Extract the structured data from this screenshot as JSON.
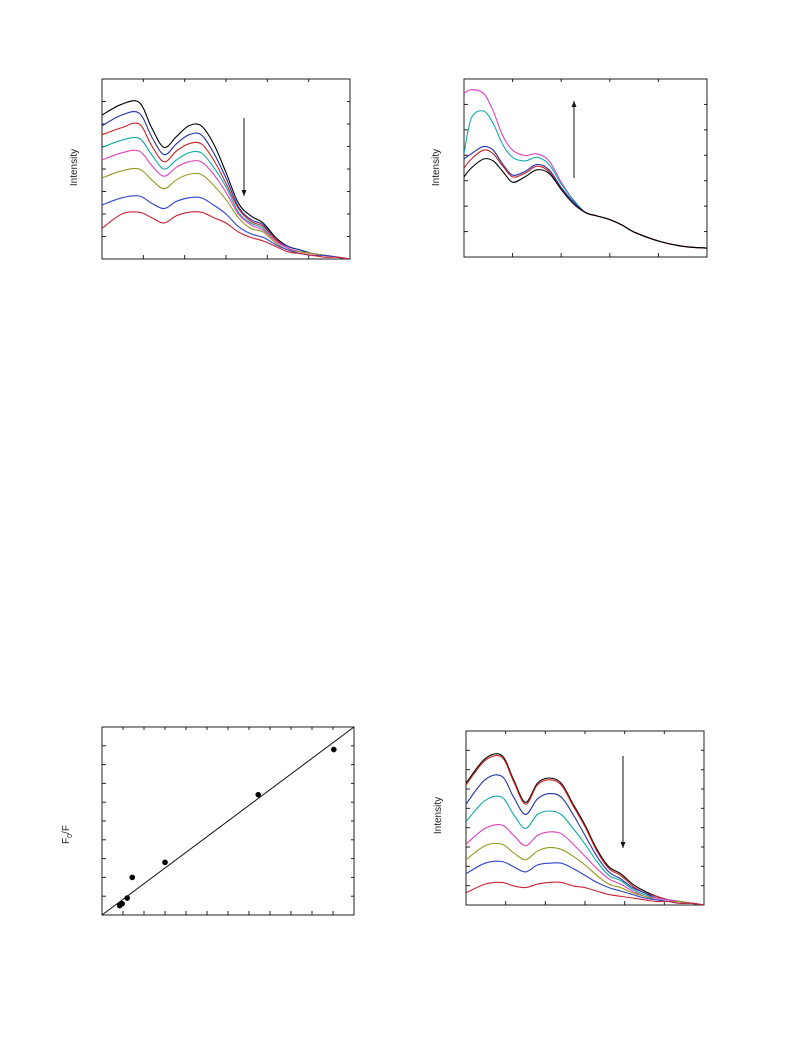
{
  "chart_data": [
    {
      "type": "line",
      "ylabel": "Intensity",
      "xlabel": "",
      "title": "",
      "xlim": [
        0,
        100
      ],
      "ylim": [
        0,
        100
      ],
      "annotation": "arrow-down",
      "series": [
        {
          "color": "#000000",
          "x": [
            0,
            8,
            15,
            20,
            25,
            30,
            35,
            40,
            45,
            50,
            55,
            60,
            65,
            70,
            75,
            80,
            85,
            90,
            95,
            100
          ],
          "values": [
            80,
            86,
            87,
            73,
            62,
            68,
            74,
            74,
            64,
            48,
            31,
            24,
            20,
            12,
            7,
            5,
            3,
            2,
            1,
            0
          ]
        },
        {
          "color": "#2233aa",
          "x": [
            0,
            8,
            15,
            20,
            25,
            30,
            35,
            40,
            45,
            50,
            55,
            60,
            65,
            70,
            75,
            80,
            85,
            90,
            95,
            100
          ],
          "values": [
            74,
            80,
            81,
            68,
            58,
            64,
            69,
            69,
            59,
            45,
            29,
            22,
            19,
            11,
            7,
            5,
            3,
            2,
            1,
            0
          ]
        },
        {
          "color": "#cc2222",
          "x": [
            0,
            8,
            15,
            20,
            25,
            30,
            35,
            40,
            45,
            50,
            55,
            60,
            65,
            70,
            75,
            80,
            85,
            90,
            95,
            100
          ],
          "values": [
            69,
            73,
            75,
            63,
            54,
            60,
            64,
            64,
            55,
            42,
            28,
            21,
            18,
            11,
            6,
            4,
            3,
            2,
            1,
            0
          ]
        },
        {
          "color": "#11aaaa",
          "x": [
            0,
            8,
            15,
            20,
            25,
            30,
            35,
            40,
            45,
            50,
            55,
            60,
            65,
            70,
            75,
            80,
            85,
            90,
            95,
            100
          ],
          "values": [
            62,
            66,
            67,
            58,
            50,
            55,
            59,
            59,
            51,
            40,
            26,
            20,
            17,
            10,
            6,
            4,
            3,
            2,
            1,
            0
          ]
        },
        {
          "color": "#dd44bb",
          "x": [
            0,
            8,
            15,
            20,
            25,
            30,
            35,
            40,
            45,
            50,
            55,
            60,
            65,
            70,
            75,
            80,
            85,
            90,
            95,
            100
          ],
          "values": [
            55,
            59,
            60,
            52,
            46,
            51,
            54,
            54,
            47,
            37,
            25,
            19,
            16,
            10,
            6,
            4,
            3,
            2,
            1,
            0
          ]
        },
        {
          "color": "#999922",
          "x": [
            0,
            8,
            15,
            20,
            25,
            30,
            35,
            40,
            45,
            50,
            55,
            60,
            65,
            70,
            75,
            80,
            85,
            90,
            95,
            100
          ],
          "values": [
            45,
            49,
            50,
            44,
            39,
            44,
            47,
            47,
            41,
            33,
            23,
            17,
            15,
            9,
            5,
            4,
            3,
            2,
            1,
            0
          ]
        },
        {
          "color": "#3344cc",
          "x": [
            0,
            8,
            15,
            20,
            25,
            30,
            35,
            40,
            45,
            50,
            55,
            60,
            65,
            70,
            75,
            80,
            85,
            90,
            95,
            100
          ],
          "values": [
            30,
            34,
            35,
            31,
            28,
            32,
            34,
            34,
            30,
            25,
            18,
            14,
            12,
            8,
            5,
            3,
            2,
            2,
            1,
            0
          ]
        },
        {
          "color": "#cc2233",
          "x": [
            0,
            8,
            15,
            20,
            25,
            30,
            35,
            40,
            45,
            50,
            55,
            60,
            65,
            70,
            75,
            80,
            85,
            90,
            95,
            100
          ],
          "values": [
            17,
            25,
            26,
            23,
            20,
            24,
            26,
            26,
            23,
            20,
            15,
            12,
            10,
            7,
            4,
            3,
            2,
            1,
            1,
            0
          ]
        }
      ]
    },
    {
      "type": "line",
      "ylabel": "Intensity",
      "xlabel": "",
      "title": "",
      "xlim": [
        0,
        100
      ],
      "ylim": [
        0,
        100
      ],
      "annotation": "arrow-up",
      "series": [
        {
          "color": "#dd44bb",
          "x": [
            0,
            3,
            8,
            12,
            16,
            20,
            25,
            30,
            35,
            40,
            45,
            50,
            55,
            60,
            65,
            70,
            80,
            90,
            100
          ],
          "values": [
            92,
            94,
            92,
            82,
            68,
            60,
            57,
            58,
            54,
            42,
            32,
            25,
            23,
            21,
            18,
            14,
            9,
            6,
            5
          ]
        },
        {
          "color": "#11aaaa",
          "x": [
            0,
            3,
            8,
            12,
            16,
            20,
            25,
            30,
            35,
            40,
            45,
            50,
            55,
            60,
            65,
            70,
            80,
            90,
            100
          ],
          "values": [
            58,
            78,
            82,
            75,
            63,
            56,
            54,
            56,
            52,
            41,
            32,
            25,
            23,
            21,
            18,
            14,
            9,
            6,
            5
          ]
        },
        {
          "color": "#2233aa",
          "x": [
            0,
            3,
            8,
            12,
            16,
            20,
            25,
            30,
            35,
            40,
            45,
            50,
            55,
            60,
            65,
            70,
            80,
            90,
            100
          ],
          "values": [
            55,
            58,
            62,
            60,
            52,
            46,
            48,
            52,
            49,
            39,
            31,
            25,
            23,
            21,
            18,
            14,
            9,
            6,
            5
          ]
        },
        {
          "color": "#cc2222",
          "x": [
            0,
            3,
            8,
            12,
            16,
            20,
            25,
            30,
            35,
            40,
            45,
            50,
            55,
            60,
            65,
            70,
            80,
            90,
            100
          ],
          "values": [
            50,
            55,
            60,
            58,
            51,
            45,
            47,
            51,
            48,
            38,
            30,
            25,
            23,
            21,
            18,
            14,
            9,
            6,
            5
          ]
        },
        {
          "color": "#000000",
          "x": [
            0,
            3,
            8,
            12,
            16,
            20,
            25,
            30,
            35,
            40,
            45,
            50,
            55,
            60,
            65,
            70,
            80,
            90,
            100
          ],
          "values": [
            45,
            50,
            55,
            54,
            48,
            42,
            45,
            49,
            47,
            38,
            30,
            25,
            23,
            21,
            18,
            14,
            9,
            6,
            5
          ]
        }
      ]
    },
    {
      "type": "scatter",
      "ylabel": "F0/F",
      "ylabel_main": "F",
      "ylabel_sub": "0",
      "ylabel_tail": "/F",
      "xlabel": "",
      "title": "",
      "xlim": [
        0,
        100
      ],
      "ylim": [
        0,
        100
      ],
      "points": [
        {
          "x": 7,
          "y": 5
        },
        {
          "x": 8,
          "y": 6
        },
        {
          "x": 10,
          "y": 9
        },
        {
          "x": 12,
          "y": 20
        },
        {
          "x": 25,
          "y": 28
        },
        {
          "x": 62,
          "y": 64
        },
        {
          "x": 92,
          "y": 88
        }
      ],
      "fit_line": {
        "x": [
          0,
          100
        ],
        "y": [
          0,
          100
        ]
      }
    },
    {
      "type": "line",
      "ylabel": "Intensity",
      "xlabel": "",
      "title": "",
      "xlim": [
        0,
        100
      ],
      "ylim": [
        0,
        100
      ],
      "annotation": "arrow-down",
      "series": [
        {
          "color": "#000000",
          "x": [
            0,
            8,
            15,
            20,
            25,
            30,
            35,
            40,
            45,
            50,
            55,
            60,
            65,
            70,
            75,
            80,
            85,
            90,
            95,
            100
          ],
          "values": [
            70,
            84,
            86,
            72,
            59,
            70,
            73,
            70,
            58,
            46,
            32,
            22,
            18,
            12,
            8,
            5,
            3,
            2,
            1,
            0
          ]
        },
        {
          "color": "#cc2222",
          "x": [
            0,
            8,
            15,
            20,
            25,
            30,
            35,
            40,
            45,
            50,
            55,
            60,
            65,
            70,
            75,
            80,
            85,
            90,
            95,
            100
          ],
          "values": [
            69,
            83,
            85,
            71,
            58,
            69,
            72,
            69,
            57,
            45,
            31,
            21,
            17,
            11,
            7,
            5,
            3,
            2,
            1,
            0
          ]
        },
        {
          "color": "#2233aa",
          "x": [
            0,
            8,
            15,
            20,
            25,
            30,
            35,
            40,
            45,
            50,
            55,
            60,
            65,
            70,
            75,
            80,
            85,
            90,
            95,
            100
          ],
          "values": [
            58,
            72,
            74,
            62,
            52,
            61,
            64,
            62,
            52,
            40,
            28,
            19,
            15,
            10,
            7,
            4,
            3,
            2,
            1,
            0
          ]
        },
        {
          "color": "#11aaaa",
          "x": [
            0,
            8,
            15,
            20,
            25,
            30,
            35,
            40,
            45,
            50,
            55,
            60,
            65,
            70,
            75,
            80,
            85,
            90,
            95,
            100
          ],
          "values": [
            48,
            60,
            62,
            52,
            44,
            52,
            54,
            52,
            44,
            35,
            25,
            17,
            14,
            9,
            6,
            4,
            3,
            2,
            1,
            0
          ]
        },
        {
          "color": "#dd44bb",
          "x": [
            0,
            8,
            15,
            20,
            25,
            30,
            35,
            40,
            45,
            50,
            55,
            60,
            65,
            70,
            75,
            80,
            85,
            90,
            95,
            100
          ],
          "values": [
            35,
            44,
            46,
            40,
            34,
            40,
            42,
            41,
            35,
            28,
            21,
            15,
            12,
            8,
            5,
            4,
            3,
            2,
            1,
            0
          ]
        },
        {
          "color": "#999922",
          "x": [
            0,
            8,
            15,
            20,
            25,
            30,
            35,
            40,
            45,
            50,
            55,
            60,
            65,
            70,
            75,
            80,
            85,
            90,
            95,
            100
          ],
          "values": [
            26,
            34,
            35,
            30,
            26,
            31,
            33,
            32,
            28,
            23,
            17,
            12,
            10,
            7,
            5,
            3,
            2,
            2,
            1,
            0
          ]
        },
        {
          "color": "#3344cc",
          "x": [
            0,
            8,
            15,
            20,
            25,
            30,
            35,
            40,
            45,
            50,
            55,
            60,
            65,
            70,
            75,
            80,
            85,
            90,
            95,
            100
          ],
          "values": [
            18,
            24,
            25,
            22,
            19,
            23,
            24,
            24,
            21,
            17,
            13,
            10,
            8,
            6,
            4,
            3,
            2,
            1,
            1,
            0
          ]
        },
        {
          "color": "#cc2233",
          "x": [
            0,
            8,
            15,
            20,
            25,
            30,
            35,
            40,
            45,
            50,
            55,
            60,
            65,
            70,
            75,
            80,
            85,
            90,
            95,
            100
          ],
          "values": [
            7,
            12,
            13,
            11,
            10,
            12,
            13,
            13,
            11,
            10,
            8,
            6,
            5,
            4,
            3,
            2,
            2,
            1,
            1,
            0
          ]
        }
      ]
    }
  ]
}
